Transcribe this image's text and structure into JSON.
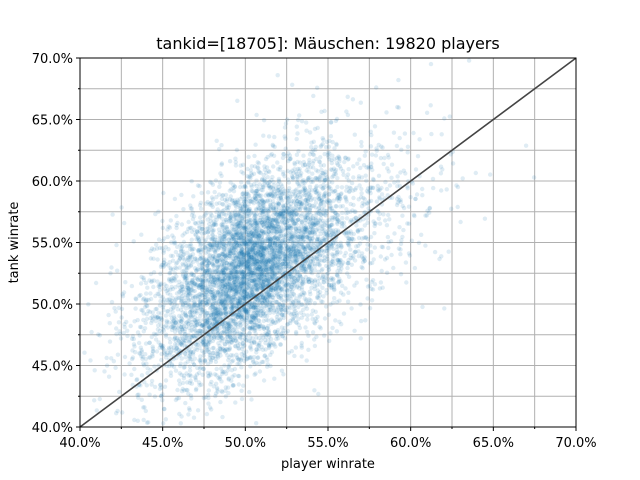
{
  "chart_data": {
    "type": "scatter",
    "title": "tankid=[18705]: Mäuschen: 19820 players",
    "xlabel": "player winrate",
    "ylabel": "tank winrate",
    "xlim": [
      0.4,
      0.7
    ],
    "ylim": [
      0.4,
      0.7
    ],
    "x_ticks": [
      0.4,
      0.45,
      0.5,
      0.55,
      0.6,
      0.65,
      0.7
    ],
    "y_ticks": [
      0.4,
      0.45,
      0.5,
      0.55,
      0.6,
      0.65,
      0.7
    ],
    "x_tick_labels": [
      "40.0%",
      "45.0%",
      "50.0%",
      "55.0%",
      "60.0%",
      "65.0%",
      "70.0%"
    ],
    "y_tick_labels": [
      "40.0%",
      "45.0%",
      "50.0%",
      "55.0%",
      "60.0%",
      "65.0%",
      "70.0%"
    ],
    "minor_x_ticks": [
      0.425,
      0.475,
      0.525,
      0.575,
      0.625,
      0.675
    ],
    "minor_y_ticks": [
      0.425,
      0.475,
      0.525,
      0.575,
      0.625,
      0.675
    ],
    "grid": true,
    "point_color": "#1f77b4",
    "line_color": "#444444",
    "reference_line": {
      "x": [
        0.4,
        0.7
      ],
      "y": [
        0.4,
        0.7
      ]
    },
    "series": [
      {
        "points_shown": 19820,
        "center": [
          0.505,
          0.53
        ],
        "x_std": 0.03,
        "y_std": 0.045,
        "correlation": 0.55
      }
    ]
  }
}
